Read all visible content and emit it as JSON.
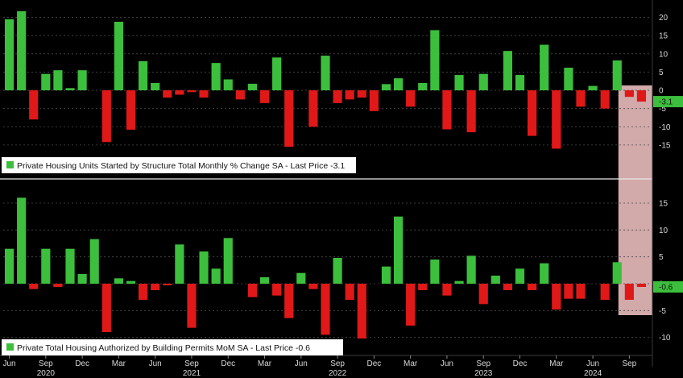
{
  "colors": {
    "positive": "#3cbf3c",
    "negative": "#e01818",
    "background": "#000000",
    "highlight": "#f7c8c8",
    "text": "#d8d8d8"
  },
  "chart_data": [
    {
      "type": "bar",
      "legend": "Private Housing Units Started by Structure Total Monthly % Change SA - Last Price -3.1",
      "last_price": "-3.1",
      "ylim": [
        -19,
        23
      ],
      "yticks": [
        "20",
        "15",
        "10",
        "5",
        "0",
        "-5",
        "-10",
        "-15"
      ],
      "start": "2020-06",
      "values": [
        19.5,
        21.7,
        -8,
        4.5,
        5.5,
        0.6,
        5.5,
        0,
        -14.2,
        18.8,
        -10.8,
        8,
        2,
        -2,
        -1.2,
        -0.5,
        -2,
        7.5,
        3,
        -2.5,
        1.8,
        -3.5,
        9,
        -15.5,
        0,
        -10,
        9.5,
        -3.5,
        -2.5,
        -2,
        -5.7,
        1.7,
        3.3,
        -4.5,
        2,
        16.5,
        -10.7,
        4.2,
        -11.5,
        4.5,
        0,
        10.8,
        4.2,
        -12.5,
        12.5,
        -16,
        6.2,
        -4.5,
        1.2,
        -5,
        8.2,
        -1.8,
        -3.1
      ]
    },
    {
      "type": "bar",
      "legend": "Private Total Housing Authorized by Building Permits MoM SA - Last Price -0.6",
      "last_price": "-0.6",
      "ylim": [
        -12,
        18
      ],
      "yticks": [
        "15",
        "10",
        "5",
        "0",
        "-5",
        "-10"
      ],
      "start": "2020-06",
      "values": [
        6.5,
        16,
        -1,
        6.5,
        -0.6,
        6.5,
        1.8,
        8.3,
        -9,
        1,
        0.5,
        -3,
        -1.2,
        -0.3,
        7.3,
        -8.2,
        6,
        2.8,
        8.5,
        0,
        -2.5,
        1.2,
        -2.2,
        -6.4,
        2,
        -1,
        -9.5,
        4.8,
        -3,
        -10.2,
        0,
        3.2,
        12.5,
        -7.8,
        -1.2,
        4.5,
        -2.2,
        0.5,
        5.2,
        -3.8,
        1.5,
        -1.2,
        2.8,
        -1.2,
        3.8,
        -4.8,
        -2.8,
        -2.8,
        0,
        -3,
        4,
        -3,
        -0.6
      ]
    }
  ],
  "x_axis": {
    "months": [
      {
        "label": "Jun",
        "index": 0
      },
      {
        "label": "Sep",
        "index": 3
      },
      {
        "label": "Dec",
        "index": 6
      },
      {
        "label": "Mar",
        "index": 9
      },
      {
        "label": "Jun",
        "index": 12
      },
      {
        "label": "Sep",
        "index": 15
      },
      {
        "label": "Dec",
        "index": 18
      },
      {
        "label": "Mar",
        "index": 21
      },
      {
        "label": "Jun",
        "index": 24
      },
      {
        "label": "Sep",
        "index": 27
      },
      {
        "label": "Dec",
        "index": 30
      },
      {
        "label": "Mar",
        "index": 33
      },
      {
        "label": "Jun",
        "index": 36
      },
      {
        "label": "Sep",
        "index": 39
      },
      {
        "label": "Dec",
        "index": 42
      },
      {
        "label": "Mar",
        "index": 45
      },
      {
        "label": "Jun",
        "index": 48
      },
      {
        "label": "Sep",
        "index": 51
      }
    ],
    "years": [
      {
        "label": "2020",
        "index": 3
      },
      {
        "label": "2021",
        "index": 15
      },
      {
        "label": "2022",
        "index": 27
      },
      {
        "label": "2023",
        "index": 39
      },
      {
        "label": "2024",
        "index": 48
      }
    ]
  },
  "highlight": {
    "from_index": 51,
    "to_index": 52
  }
}
